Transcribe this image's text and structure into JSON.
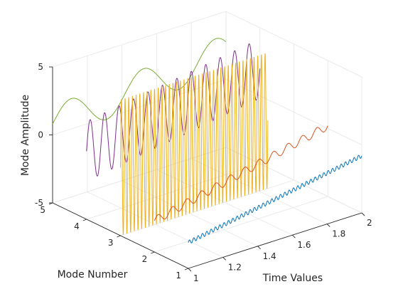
{
  "chart_data": {
    "type": "line",
    "projection": "3d-waterfall",
    "xlabel": "Time Values",
    "ylabel": "Mode Number",
    "zlabel": "Mode Amplitude",
    "xlim": [
      1,
      2
    ],
    "ylim": [
      1,
      5
    ],
    "zlim": [
      -5,
      5
    ],
    "x_ticks": [
      "1",
      "1.2",
      "1.4",
      "1.6",
      "1.8",
      "2"
    ],
    "y_ticks": [
      "1",
      "2",
      "3",
      "4",
      "5"
    ],
    "z_ticks": [
      "-5",
      "0",
      "5"
    ],
    "grid": true,
    "series": [
      {
        "mode": 1,
        "color": "#0072BD",
        "amplitude": 0.15,
        "cycles": 40,
        "offset_start": -3.1,
        "offset_end": -0.8,
        "x_range": [
          1,
          2
        ]
      },
      {
        "mode": 2,
        "color": "#D95319",
        "amplitude": 0.3,
        "cycles": 12,
        "offset_start": -2.7,
        "offset_end": 0.2,
        "x_range": [
          1,
          2
        ]
      },
      {
        "mode": 3,
        "color": "#EDB120",
        "amplitude": 5.0,
        "cycles": 40,
        "offset_start": 0,
        "offset_end": 0,
        "x_range": [
          1,
          1.85
        ]
      },
      {
        "mode": 4,
        "color": "#7E2F8E",
        "amplitude": 2.2,
        "cycles": 12,
        "offset_start": 0,
        "offset_end": 2.0,
        "x_range": [
          1,
          2
        ]
      },
      {
        "mode": 5,
        "color": "#77AC30",
        "amplitude": 1.3,
        "cycles": 2.4,
        "offset_start": 0.8,
        "offset_end": 2.0,
        "x_range": [
          1,
          2
        ]
      }
    ]
  }
}
